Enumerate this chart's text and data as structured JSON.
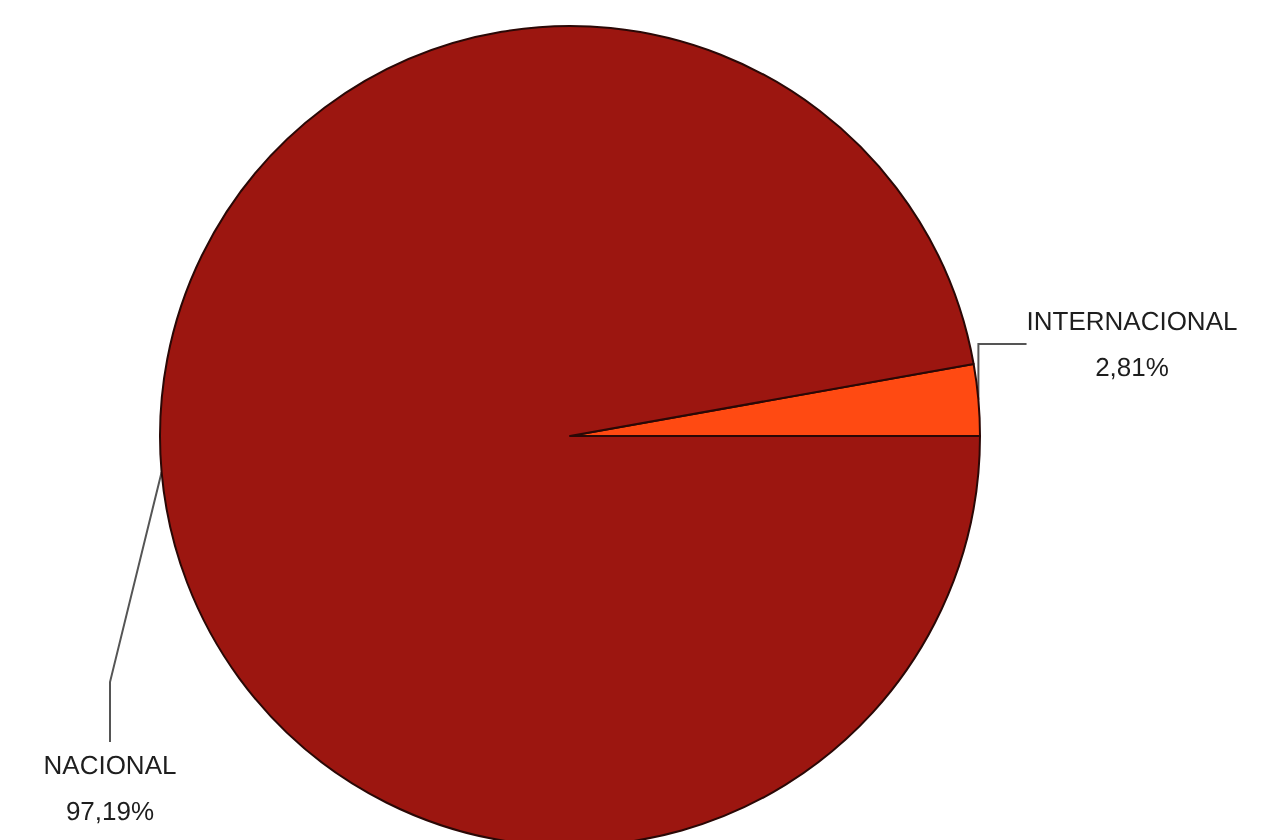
{
  "chart_data": {
    "type": "pie",
    "categories": [
      "INTERNACIONAL",
      "NACIONAL"
    ],
    "values": [
      2.81,
      97.19
    ],
    "colors": [
      "#ff4a12",
      "#9c1610"
    ],
    "value_labels": [
      "2,81%",
      "97,19%"
    ]
  }
}
